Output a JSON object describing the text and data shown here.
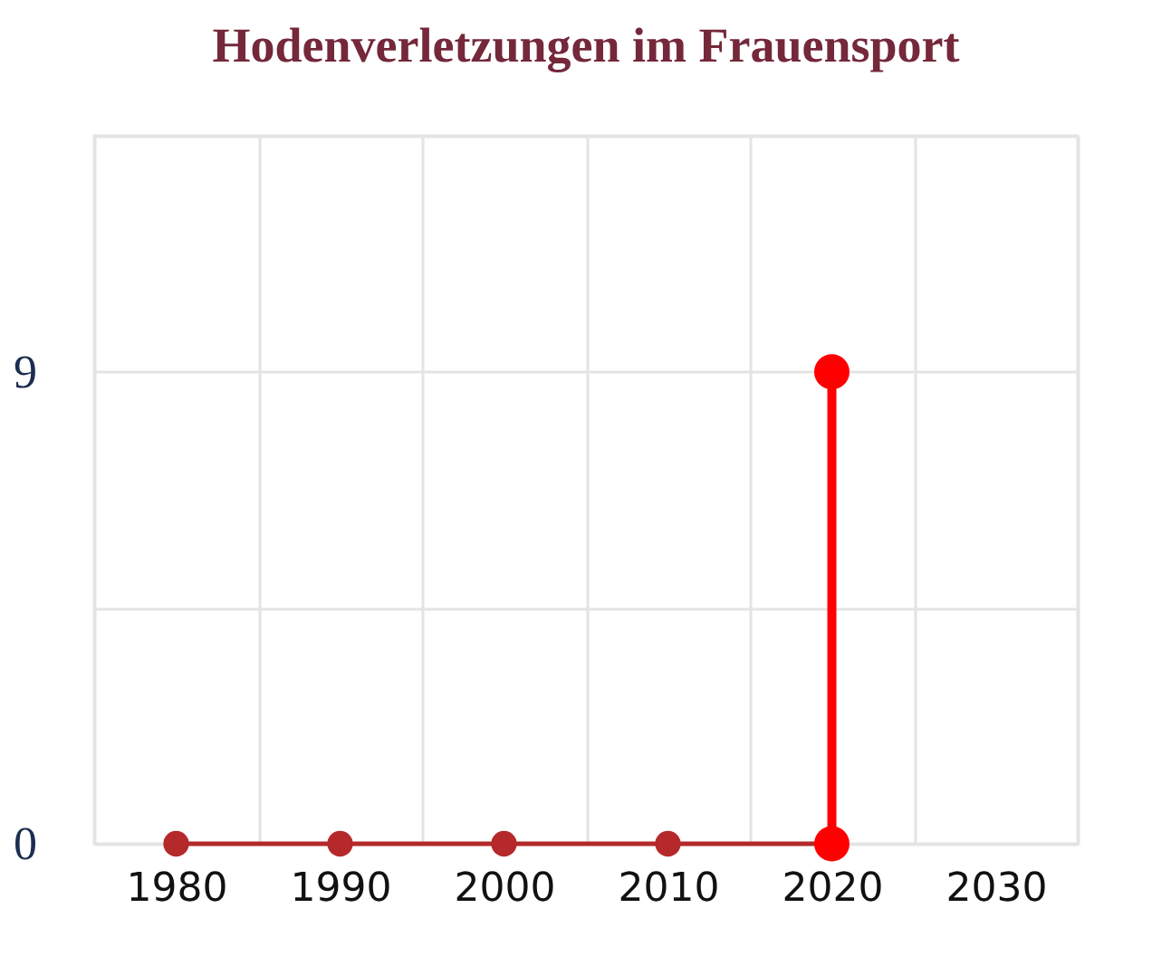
{
  "chart_data": {
    "type": "line",
    "title": "Hodenverletzungen im Frauensport",
    "series": [
      {
        "color": "#b5292b",
        "x": [
          1980,
          1990,
          2000,
          2010,
          2020
        ],
        "values": [
          0,
          0,
          0,
          0,
          0
        ]
      },
      {
        "color": "#ff0000",
        "x": [
          2020,
          2020
        ],
        "values": [
          0,
          9
        ]
      }
    ],
    "xlim": [
      1975,
      2035
    ],
    "xticks": [
      {
        "value": 1975,
        "label": null
      },
      1980,
      {
        "value": 1985,
        "label": null
      },
      1990,
      {
        "value": 1995,
        "label": null
      },
      2000,
      {
        "value": 2005,
        "label": null
      },
      2010,
      {
        "value": 2015,
        "label": null
      },
      2020,
      {
        "value": 2025,
        "label": null
      },
      2030,
      {
        "value": 2035,
        "label": null
      }
    ],
    "ylim": [
      0,
      13.5
    ],
    "yticks": [
      0,
      {
        "value": 4.5,
        "label": null
      },
      9,
      {
        "value": 13.5,
        "label": null
      }
    ],
    "grid": true,
    "marker": "circle",
    "line_style": "solid"
  }
}
